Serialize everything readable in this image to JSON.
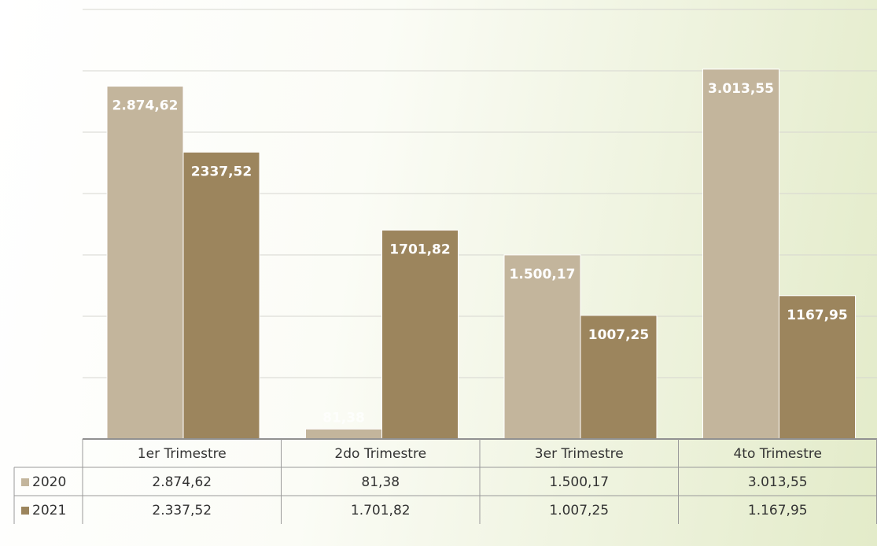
{
  "chart_data": {
    "type": "bar",
    "categories": [
      "1er Trimestre",
      "2do Trimestre",
      "3er Trimestre",
      "4to Trimestre"
    ],
    "series": [
      {
        "name": "2020",
        "color": "#c3b59c",
        "values": [
          2874.62,
          81.38,
          1500.17,
          3013.55
        ],
        "value_labels": [
          "2.874,62",
          "81,38",
          "1.500,17",
          "3.013,55"
        ],
        "table_labels": [
          "2.874,62",
          "81,38",
          "1.500,17",
          "3.013,55"
        ]
      },
      {
        "name": "2021",
        "color": "#9c855d",
        "values": [
          2337.52,
          1701.82,
          1007.25,
          1167.95
        ],
        "value_labels": [
          "2337,52",
          "1701,82",
          "1007,25",
          "1167,95"
        ],
        "table_labels": [
          "2.337,52",
          "1.701,82",
          "1.007,25",
          "1.167,95"
        ]
      }
    ],
    "ylim": [
      0,
      3500
    ],
    "yticks": [
      0,
      500,
      1000,
      1500,
      2000,
      2500,
      3000,
      3500
    ],
    "grid": true
  }
}
